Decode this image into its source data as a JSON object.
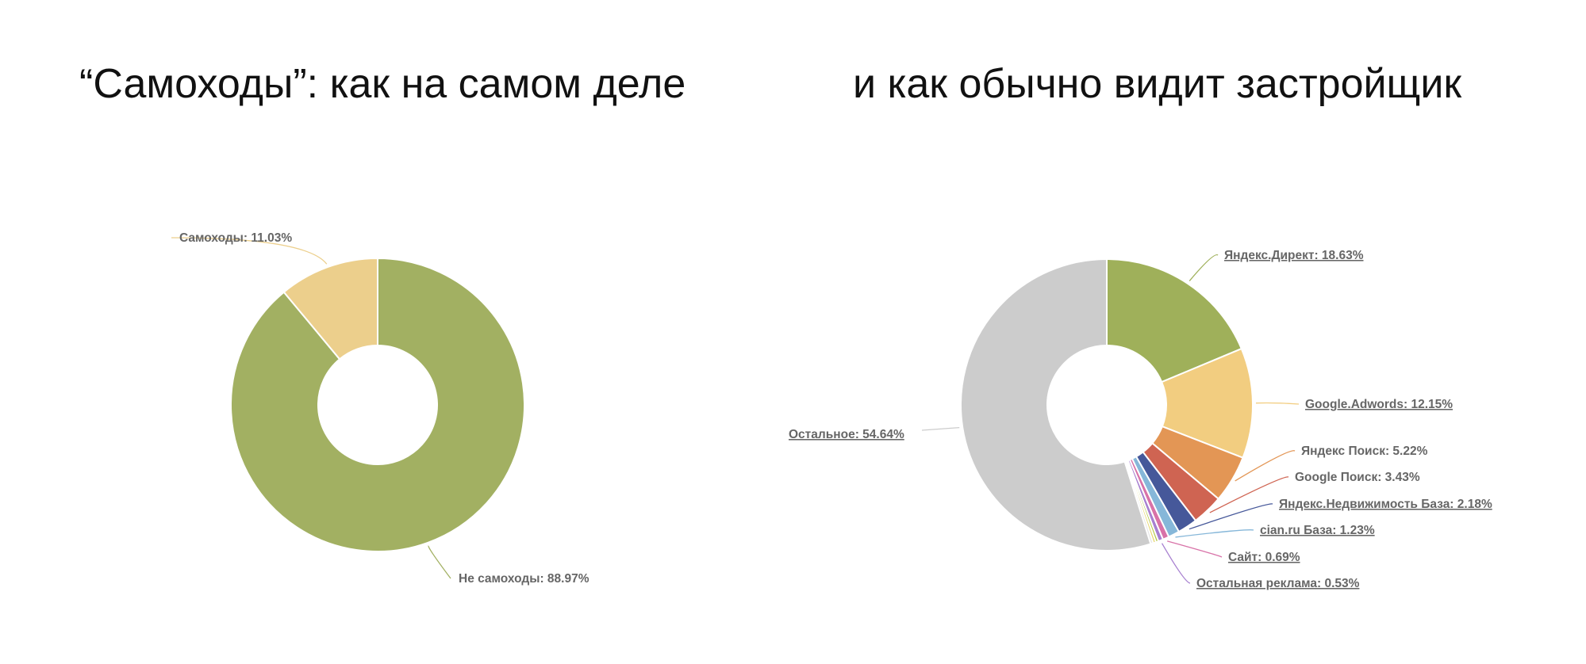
{
  "titles": {
    "left": "“Самоходы”: как на самом деле",
    "right": "и как обычно видит застройщик"
  },
  "chart_data": [
    {
      "type": "pie",
      "donut": true,
      "slices": [
        {
          "label": "Не самоходы",
          "value": 88.97,
          "color": "#a2b062",
          "display": "Не самоходы: 88.97%"
        },
        {
          "label": "Самоходы",
          "value": 11.03,
          "color": "#eccf8c",
          "display": "Самоходы: 11.03%"
        }
      ]
    },
    {
      "type": "pie",
      "donut": true,
      "slices": [
        {
          "label": "Яндекс.Директ",
          "value": 18.63,
          "color": "#9fb05a",
          "display": "Яндекс.Директ: 18.63%"
        },
        {
          "label": "Google.Adwords",
          "value": 12.15,
          "color": "#f2cd80",
          "display": "Google.Adwords: 12.15%"
        },
        {
          "label": "Яндекс Поиск",
          "value": 5.22,
          "color": "#e39655",
          "display": "Яндекс Поиск: 5.22%"
        },
        {
          "label": "Google Поиск",
          "value": 3.43,
          "color": "#cf6452",
          "display": "Google Поиск: 3.43%"
        },
        {
          "label": "Яндекс.Недвижимость База",
          "value": 2.18,
          "color": "#46589a",
          "display": "Яндекс.Недвижимость База: 2.18%"
        },
        {
          "label": "cian.ru База",
          "value": 1.23,
          "color": "#86b7d9",
          "display": "cian.ru База: 1.23%"
        },
        {
          "label": "Сайт",
          "value": 0.69,
          "color": "#d872a8",
          "display": "Сайт: 0.69%"
        },
        {
          "label": "Остальная реклама",
          "value": 0.53,
          "color": "#a77fd0",
          "display": "Остальная реклама: 0.53%"
        },
        {
          "label": "",
          "value": 0.3,
          "color": "#b6c94c",
          "display": ""
        },
        {
          "label": "",
          "value": 0.3,
          "color": "#e8d870",
          "display": ""
        },
        {
          "label": "",
          "value": 0.3,
          "color": "#e6e6e6",
          "display": ""
        },
        {
          "label": "Остальное",
          "value": 54.64,
          "color": "#cccccc",
          "display": "Остальное: 54.64%"
        }
      ]
    }
  ]
}
